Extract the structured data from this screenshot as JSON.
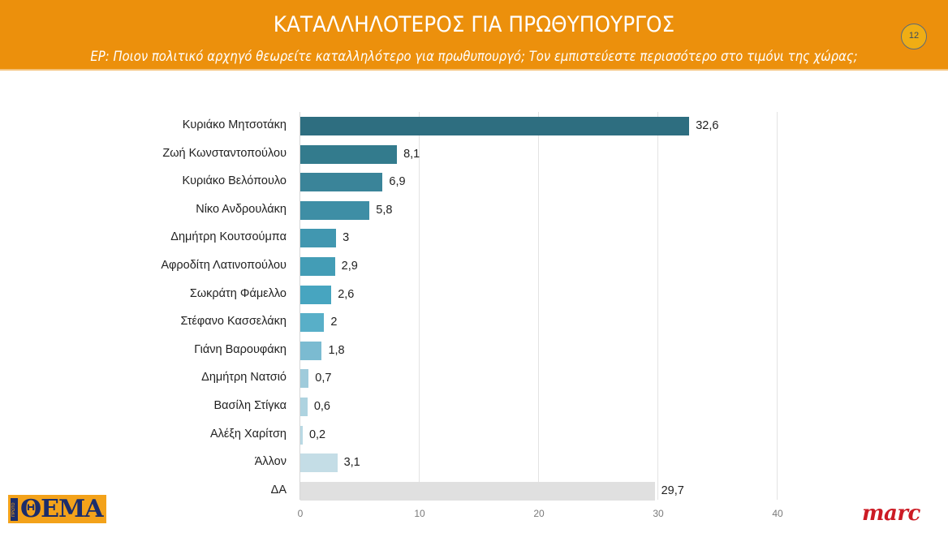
{
  "header": {
    "title": "ΚΑΤΑΛΛΗΛΟΤΕΡΟΣ ΓΙΑ ΠΡΩΘΥΠΟΥΡΓΟΣ",
    "subtitle": "ΕΡ: Ποιον πολιτικό αρχηγό θεωρείτε καταλληλότερο για πρωθυπουργό; Τον εμπιστεύεστε περισσότερο στο τιμόνι της χώρας;",
    "page_number": "12"
  },
  "colors": {
    "header_bg": "#ec900c",
    "badge_bg": "#f0ad14",
    "thema_logo_bg": "#f3a21a",
    "thema_logo_text": "#1b2d6b",
    "marc_logo": "#cc1b24"
  },
  "logos": {
    "left": {
      "small": "ΠΡΩΤΟ",
      "main": "ΘΕΜΑ"
    },
    "right": "marc"
  },
  "chart_data": {
    "type": "bar",
    "orientation": "horizontal",
    "title": "ΚΑΤΑΛΛΗΛΟΤΕΡΟΣ ΓΙΑ ΠΡΩΘΥΠΟΥΡΓΟΣ",
    "subtitle": "ΕΡ: Ποιον πολιτικό αρχηγό θεωρείτε καταλληλότερο για πρωθυπουργό; Τον εμπιστεύεστε περισσότερο στο τιμόνι της χώρας;",
    "xlabel": "",
    "ylabel": "",
    "xlim": [
      0,
      40
    ],
    "x_ticks": [
      "0",
      "10",
      "20",
      "30",
      "40"
    ],
    "grid": true,
    "legend": null,
    "categories": [
      "Κυριάκο Μητσοτάκη",
      "Ζωή Κωνσταντοπούλου",
      "Κυριάκο Βελόπουλο",
      "Νίκο Ανδρουλάκη",
      "Δημήτρη Κουτσούμπα",
      "Αφροδίτη Λατινοπούλου",
      "Σωκράτη Φάμελλο",
      "Στέφανο Κασσελάκη",
      "Γιάνη Βαρουφάκη",
      "Δημήτρη Νατσιό",
      "Βασίλη Στίγκα",
      "Αλέξη Χαρίτση",
      "Άλλον",
      "ΔΑ"
    ],
    "values": [
      32.6,
      8.1,
      6.9,
      5.8,
      3,
      2.9,
      2.6,
      2,
      1.8,
      0.7,
      0.6,
      0.2,
      3.1,
      29.7
    ],
    "value_labels": [
      "32,6",
      "8,1",
      "6,9",
      "5,8",
      "3",
      "2,9",
      "2,6",
      "2",
      "1,8",
      "0,7",
      "0,6",
      "0,2",
      "3,1",
      "29,7"
    ],
    "bar_colors": [
      "#2e6e80",
      "#337b8d",
      "#3a8499",
      "#3e8ea5",
      "#4197b0",
      "#439db6",
      "#47a5c0",
      "#58afc8",
      "#7bbbd1",
      "#9fcbdb",
      "#aed3e0",
      "#b9d9e4",
      "#c4dde6",
      "#e0e0e0"
    ]
  }
}
